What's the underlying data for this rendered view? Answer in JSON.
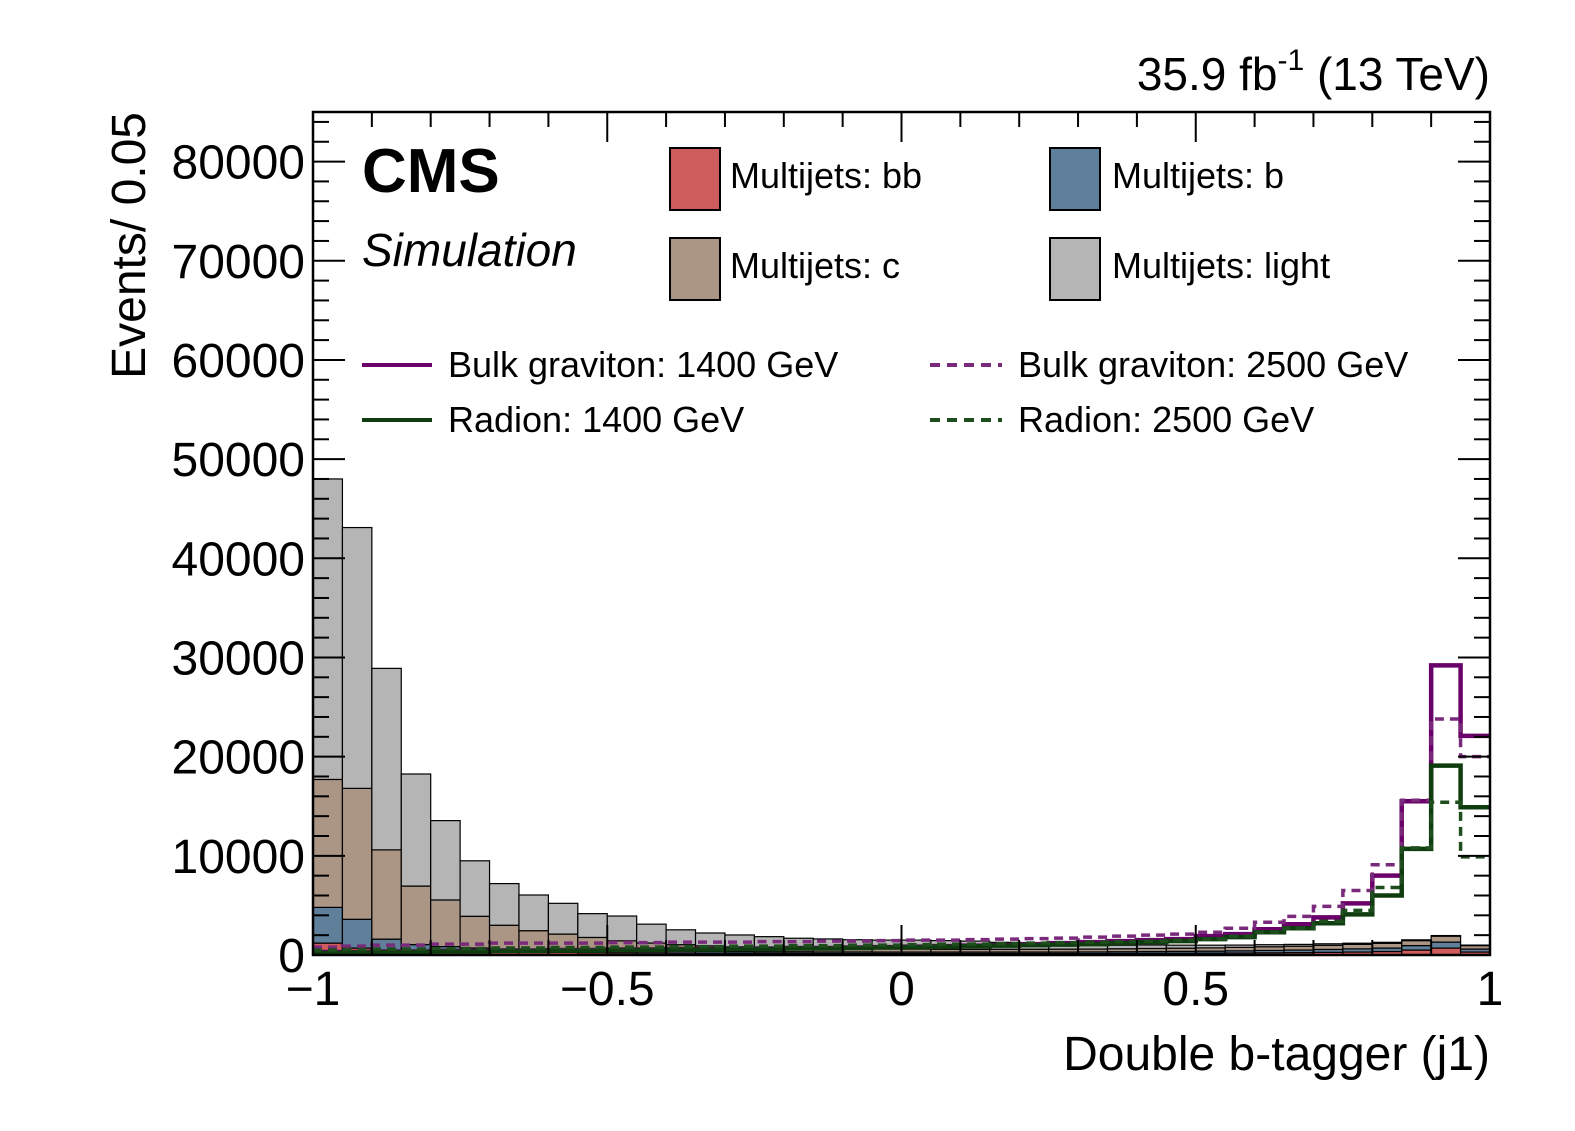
{
  "chart_data": {
    "type": "bar",
    "title": "",
    "lumi_label": "35.9 fb",
    "lumi_sup": "-1",
    "energy_label": " (13 TeV)",
    "cms_label": "CMS",
    "simulation_label": "Simulation",
    "xlabel": "Double b-tagger (j1)",
    "ylabel": "Events/ 0.05",
    "xlim": [
      -1,
      1
    ],
    "ylim": [
      0,
      85000
    ],
    "x_ticks": [
      -1,
      -0.5,
      0,
      0.5,
      1
    ],
    "x_tick_labels": [
      "−1",
      "−0.5",
      "0",
      "0.5",
      "1"
    ],
    "y_ticks": [
      0,
      10000,
      20000,
      30000,
      40000,
      50000,
      60000,
      70000,
      80000
    ],
    "y_tick_labels": [
      "0",
      "10000",
      "20000",
      "30000",
      "40000",
      "50000",
      "60000",
      "70000",
      "80000"
    ],
    "bin_edges": [
      -1,
      -0.95,
      -0.9,
      -0.85,
      -0.8,
      -0.75,
      -0.7,
      -0.65,
      -0.6,
      -0.55,
      -0.5,
      -0.45,
      -0.4,
      -0.35,
      -0.3,
      -0.25,
      -0.2,
      -0.15,
      -0.1,
      -0.05,
      0,
      0.05,
      0.1,
      0.15,
      0.2,
      0.25,
      0.3,
      0.35,
      0.4,
      0.45,
      0.5,
      0.55,
      0.6,
      0.65,
      0.7,
      0.75,
      0.8,
      0.85,
      0.9,
      0.95,
      1
    ],
    "stack_order": [
      "bb",
      "b",
      "c",
      "light"
    ],
    "stacked_series": [
      {
        "key": "bb",
        "name": "Multijets: bb",
        "color": "#cf5c5c",
        "values": [
          1200,
          700,
          500,
          450,
          400,
          350,
          300,
          280,
          260,
          240,
          220,
          210,
          200,
          190,
          180,
          170,
          170,
          160,
          160,
          150,
          150,
          150,
          150,
          150,
          150,
          150,
          150,
          160,
          170,
          180,
          190,
          200,
          220,
          240,
          270,
          300,
          350,
          500,
          700,
          300
        ]
      },
      {
        "key": "b",
        "name": "Multijets: b",
        "color": "#5f7f9a",
        "values": [
          3600,
          2900,
          1100,
          600,
          450,
          350,
          300,
          270,
          250,
          230,
          210,
          200,
          190,
          180,
          170,
          160,
          160,
          150,
          150,
          150,
          150,
          150,
          150,
          150,
          150,
          150,
          160,
          170,
          180,
          190,
          200,
          220,
          240,
          260,
          290,
          320,
          350,
          450,
          600,
          300
        ]
      },
      {
        "key": "c",
        "name": "Multijets: c",
        "color": "#ab9585",
        "values": [
          12900,
          13200,
          9000,
          5900,
          4700,
          3200,
          2400,
          1900,
          1600,
          1300,
          1000,
          800,
          650,
          550,
          470,
          420,
          380,
          350,
          330,
          310,
          300,
          290,
          280,
          280,
          280,
          290,
          290,
          300,
          310,
          320,
          330,
          350,
          370,
          390,
          420,
          450,
          480,
          500,
          600,
          350
        ]
      },
      {
        "key": "light",
        "name": "Multijets: light",
        "color": "#b5b5b5",
        "values": [
          30300,
          26300,
          18300,
          11300,
          8000,
          5600,
          4200,
          3600,
          3100,
          2400,
          2500,
          1900,
          1500,
          1300,
          1200,
          1100,
          980,
          960,
          900,
          890,
          900,
          860,
          820,
          700,
          500,
          450,
          400,
          350,
          350,
          300,
          270,
          230,
          210,
          180,
          150,
          120,
          100,
          80,
          60,
          50
        ]
      }
    ],
    "line_series": [
      {
        "key": "grav1400",
        "name": "Bulk graviton: 1400 GeV",
        "color": "#6a006a",
        "dashed": false,
        "values": [
          300,
          300,
          350,
          350,
          400,
          400,
          450,
          450,
          500,
          500,
          550,
          550,
          600,
          600,
          650,
          650,
          700,
          700,
          750,
          800,
          850,
          900,
          950,
          1000,
          1100,
          1200,
          1300,
          1400,
          1500,
          1600,
          1900,
          2100,
          2600,
          3100,
          3800,
          5200,
          8000,
          15500,
          29200,
          22100
        ]
      },
      {
        "key": "grav2500",
        "name": "Bulk graviton: 2500 GeV",
        "color": "#7a2a7a",
        "dashed": true,
        "values": [
          800,
          900,
          1000,
          1000,
          1100,
          1100,
          1200,
          1200,
          1200,
          1200,
          1250,
          1250,
          1300,
          1300,
          1300,
          1350,
          1350,
          1400,
          1400,
          1450,
          1500,
          1500,
          1550,
          1600,
          1650,
          1700,
          1800,
          1900,
          2000,
          2100,
          2300,
          2700,
          3300,
          3900,
          4900,
          6500,
          9100,
          15600,
          23800,
          20000
        ]
      },
      {
        "key": "rad1400",
        "name": "Radion: 1400 GeV",
        "color": "#0f3d0f",
        "dashed": false,
        "values": [
          200,
          250,
          300,
          300,
          350,
          350,
          400,
          400,
          450,
          450,
          500,
          500,
          550,
          550,
          600,
          600,
          650,
          650,
          700,
          750,
          800,
          850,
          900,
          950,
          1000,
          1050,
          1100,
          1200,
          1300,
          1400,
          1600,
          1800,
          2300,
          2700,
          3200,
          4100,
          6000,
          10700,
          19100,
          14900
        ]
      },
      {
        "key": "rad2500",
        "name": "Radion: 2500 GeV",
        "color": "#1e4d1e",
        "dashed": true,
        "values": [
          500,
          550,
          600,
          600,
          650,
          650,
          700,
          700,
          750,
          750,
          800,
          800,
          850,
          850,
          900,
          900,
          950,
          950,
          1000,
          1000,
          1050,
          1100,
          1100,
          1150,
          1200,
          1250,
          1300,
          1350,
          1400,
          1500,
          1600,
          1900,
          2300,
          2700,
          3400,
          4500,
          6800,
          10800,
          15400,
          9900
        ]
      }
    ],
    "legend_placement": "top, inside plot",
    "grid": false
  }
}
